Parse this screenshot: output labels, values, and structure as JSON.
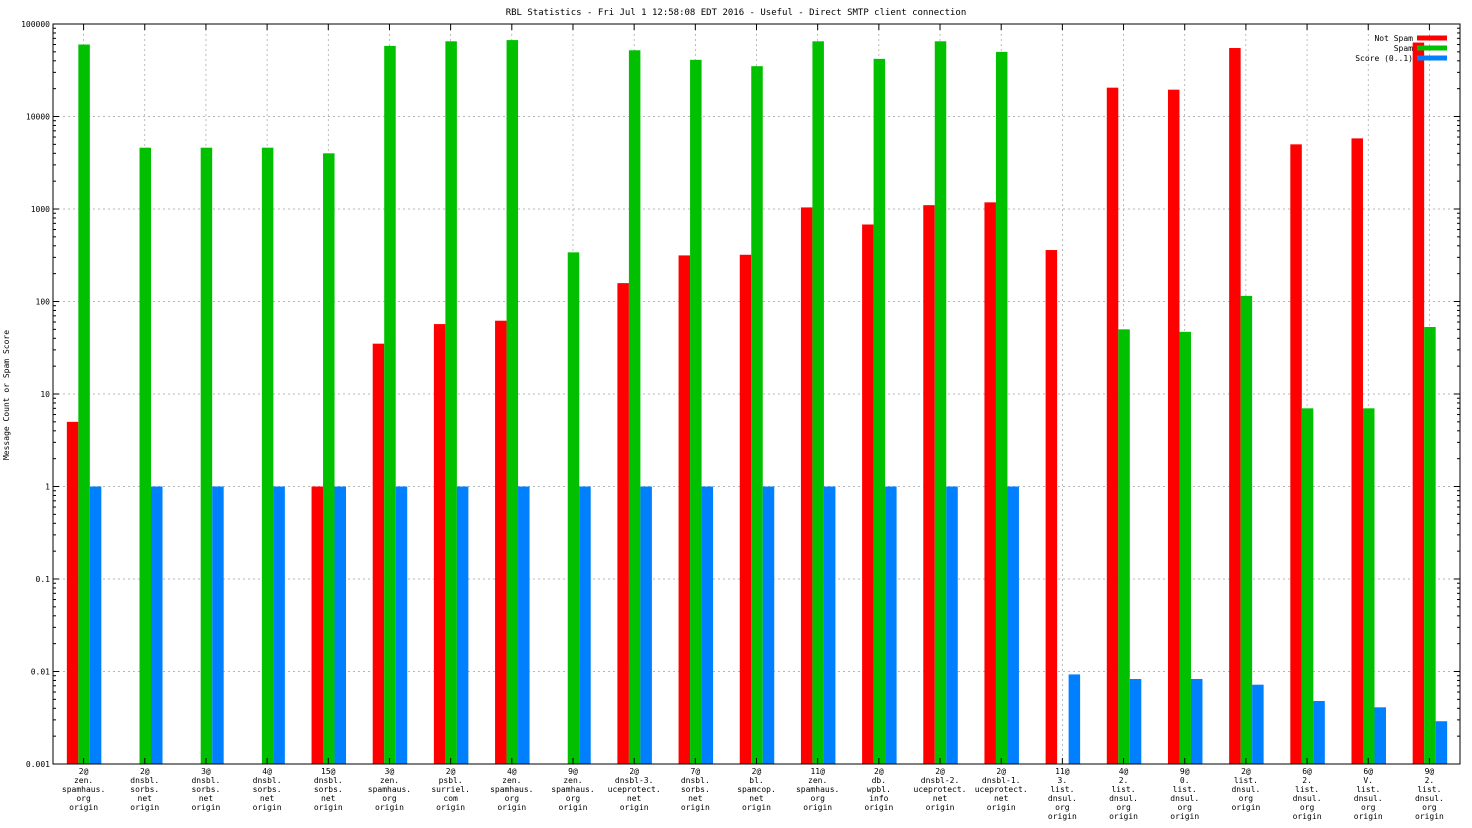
{
  "chart_data": {
    "type": "bar",
    "title": "RBL Statistics - Fri Jul  1 12:58:08 EDT 2016 - Useful - Direct SMTP client connection",
    "xlabel": "",
    "ylabel": "Message Count or Spam Score",
    "yscale": "log",
    "ylim": [
      0.001,
      100000
    ],
    "yticks": [
      {
        "value": 0.001,
        "label": "0.001"
      },
      {
        "value": 0.01,
        "label": "0.01"
      },
      {
        "value": 0.1,
        "label": "0.1"
      },
      {
        "value": 1,
        "label": "1"
      },
      {
        "value": 10,
        "label": "10"
      },
      {
        "value": 100,
        "label": "100"
      },
      {
        "value": 1000,
        "label": "1000"
      },
      {
        "value": 10000,
        "label": "10000"
      },
      {
        "value": 100000,
        "label": "100000"
      }
    ],
    "grid": true,
    "legend_position": "top-right",
    "categories": [
      [
        "2@",
        "zen.",
        "spamhaus.",
        "org",
        "origin"
      ],
      [
        "2@",
        "dnsbl.",
        "sorbs.",
        "net",
        "origin"
      ],
      [
        "3@",
        "dnsbl.",
        "sorbs.",
        "net",
        "origin"
      ],
      [
        "4@",
        "dnsbl.",
        "sorbs.",
        "net",
        "origin"
      ],
      [
        "15@",
        "dnsbl.",
        "sorbs.",
        "net",
        "origin"
      ],
      [
        "3@",
        "zen.",
        "spamhaus.",
        "org",
        "origin"
      ],
      [
        "2@",
        "psbl.",
        "surriel.",
        "com",
        "origin"
      ],
      [
        "4@",
        "zen.",
        "spamhaus.",
        "org",
        "origin"
      ],
      [
        "9@",
        "zen.",
        "spamhaus.",
        "org",
        "origin"
      ],
      [
        "2@",
        "dnsbl-3.",
        "uceprotect.",
        "net",
        "origin"
      ],
      [
        "7@",
        "dnsbl.",
        "sorbs.",
        "net",
        "origin"
      ],
      [
        "2@",
        "bl.",
        "spamcop.",
        "net",
        "origin"
      ],
      [
        "11@",
        "zen.",
        "spamhaus.",
        "org",
        "origin"
      ],
      [
        "2@",
        "db.",
        "wpbl.",
        "info",
        "origin"
      ],
      [
        "2@",
        "dnsbl-2.",
        "uceprotect.",
        "net",
        "origin"
      ],
      [
        "2@",
        "dnsbl-1.",
        "uceprotect.",
        "net",
        "origin"
      ],
      [
        "11@",
        "3.",
        "list.",
        "dnsul.",
        "org",
        "origin"
      ],
      [
        "4@",
        "2.",
        "list.",
        "dnsul.",
        "org",
        "origin"
      ],
      [
        "9@",
        "0.",
        "list.",
        "dnsul.",
        "org",
        "origin"
      ],
      [
        "2@",
        "list.",
        "dnsul.",
        "org",
        "origin"
      ],
      [
        "6@",
        "2.",
        "list.",
        "dnsul.",
        "org",
        "origin"
      ],
      [
        "6@",
        "V.",
        "list.",
        "dnsul.",
        "org",
        "origin"
      ],
      [
        "9@",
        "2.",
        "list.",
        "dnsul.",
        "org",
        "origin"
      ]
    ],
    "series": [
      {
        "name": "Not Spam",
        "color": "#ff0000",
        "values": [
          5,
          null,
          null,
          null,
          1,
          35,
          57,
          62,
          null,
          158,
          315,
          320,
          1040,
          680,
          1100,
          1180,
          360,
          20500,
          19500,
          55000,
          5000,
          5800,
          63000
        ]
      },
      {
        "name": "Spam",
        "color": "#00c000",
        "values": [
          60000,
          4600,
          4600,
          4600,
          4000,
          58000,
          65000,
          67000,
          340,
          52000,
          41000,
          35000,
          65000,
          42000,
          65000,
          50000,
          null,
          50,
          47,
          115,
          7,
          7,
          53
        ]
      },
      {
        "name": "Score (0..1)",
        "color": "#0080ff",
        "values": [
          1,
          1,
          1,
          1,
          1,
          1,
          1,
          1,
          1,
          1,
          1,
          1,
          1,
          1,
          1,
          1,
          0.0093,
          0.0083,
          0.0083,
          0.0072,
          0.0048,
          0.0041,
          0.0029
        ]
      }
    ]
  }
}
